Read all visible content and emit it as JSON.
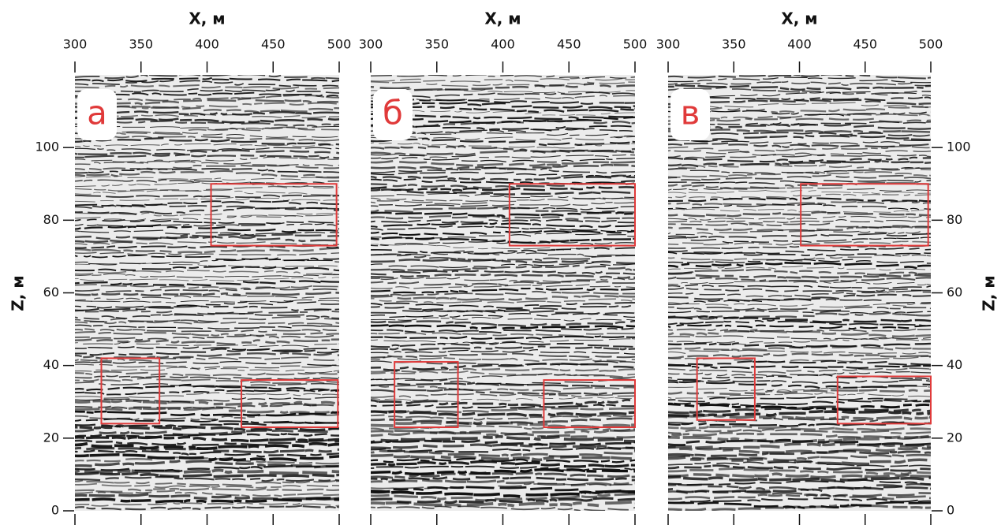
{
  "chart_data": [
    {
      "type": "seismic",
      "label": "а",
      "xlabel": "X, м",
      "ylabel": "Z, м",
      "yaxis": "left",
      "xlim": [
        300,
        500
      ],
      "xticks": [
        300,
        350,
        400,
        450,
        500
      ],
      "ylim": [
        0,
        120
      ],
      "yticks": [
        0,
        20,
        40,
        60,
        80,
        100
      ],
      "box_color": "#e03a3a",
      "boxes": [
        {
          "x": [
            403,
            498
          ],
          "z": [
            73,
            90
          ]
        },
        {
          "x": [
            320,
            364
          ],
          "z": [
            24,
            42
          ]
        },
        {
          "x": [
            426,
            499
          ],
          "z": [
            23,
            36
          ]
        }
      ]
    },
    {
      "type": "seismic",
      "label": "б",
      "xlabel": "X, м",
      "xlim": [
        300,
        500
      ],
      "xticks": [
        300,
        350,
        400,
        450,
        500
      ],
      "ylim": [
        0,
        120
      ],
      "box_color": "#e03a3a",
      "boxes": [
        {
          "x": [
            405,
            500
          ],
          "z": [
            73,
            90
          ]
        },
        {
          "x": [
            318,
            366
          ],
          "z": [
            23,
            41
          ]
        },
        {
          "x": [
            431,
            500
          ],
          "z": [
            23,
            36
          ]
        }
      ]
    },
    {
      "type": "seismic",
      "label": "в",
      "xlabel": "X, м",
      "ylabel": "Z, м",
      "yaxis": "right",
      "xlim": [
        300,
        500
      ],
      "xticks": [
        300,
        350,
        400,
        450,
        500
      ],
      "ylim": [
        0,
        120
      ],
      "yticks": [
        0,
        20,
        40,
        60,
        80,
        100
      ],
      "box_color": "#e03a3a",
      "boxes": [
        {
          "x": [
            401,
            498
          ],
          "z": [
            73,
            90
          ]
        },
        {
          "x": [
            322,
            366
          ],
          "z": [
            25,
            42
          ]
        },
        {
          "x": [
            429,
            500
          ],
          "z": [
            24,
            37
          ]
        }
      ]
    }
  ]
}
